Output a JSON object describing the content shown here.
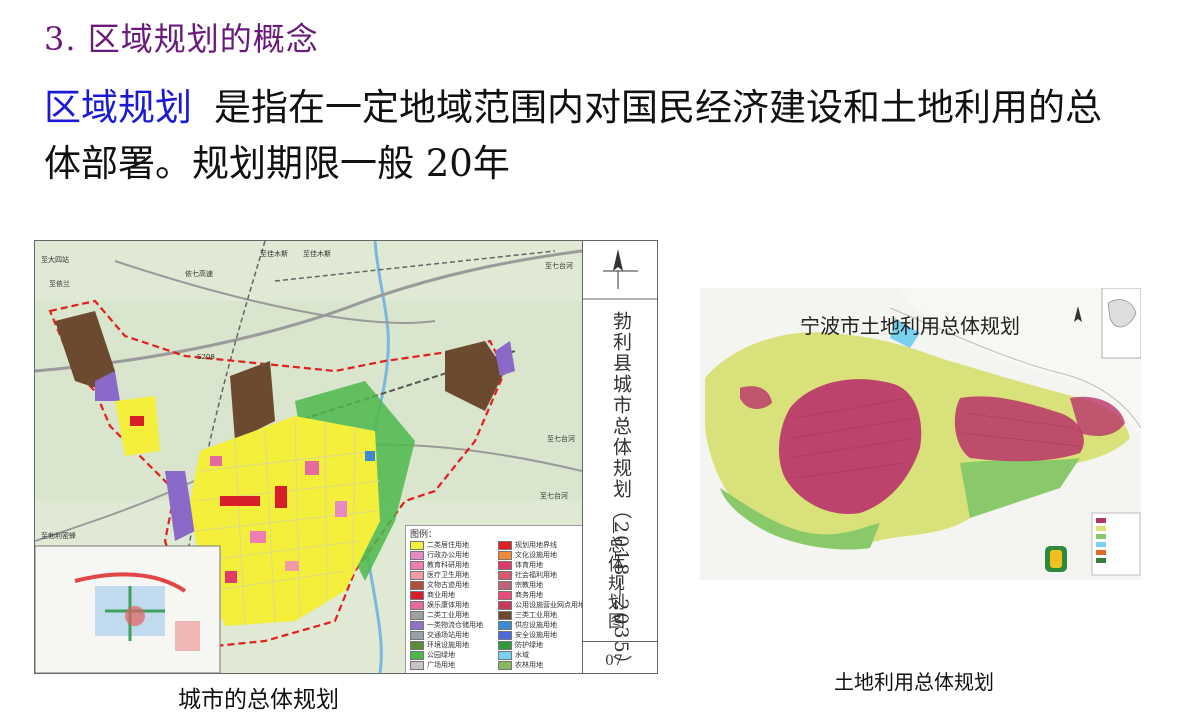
{
  "slide": {
    "title": "3. 区域规划的概念",
    "term": "区域规划",
    "definition": "是指在一定地域范围内对国民经济建设和土地利用的总体部署。规划期限一般 20年"
  },
  "left_figure": {
    "caption": "城市的总体规划",
    "title_block": {
      "vertical_title": "勃利县城市总体规划（2018—2035）",
      "subtitle": "—总体规划图",
      "page": "07"
    },
    "map_labels": [
      "依七高速",
      "S208",
      "至依兰",
      "至大四站",
      "至七台河",
      "至七台河",
      "至七台河",
      "至勃利密蜂",
      "至佳木斯",
      "至佳木斯"
    ],
    "legend": {
      "title": "图例：",
      "items": [
        {
          "label": "二类居住用地",
          "color": "#f3ef3a"
        },
        {
          "label": "规划用地界线",
          "color": "#e02020"
        },
        {
          "label": "行政办公用地",
          "color": "#e58ac4"
        },
        {
          "label": "文化设施用地",
          "color": "#f08a3a"
        },
        {
          "label": "教育科研用地",
          "color": "#f07cb4"
        },
        {
          "label": "体育用地",
          "color": "#e03a6a"
        },
        {
          "label": "医疗卫生用地",
          "color": "#f29aa8"
        },
        {
          "label": "社会福利用地",
          "color": "#d65a6a"
        },
        {
          "label": "文物古迹用地",
          "color": "#b0503a"
        },
        {
          "label": "宗教用地",
          "color": "#c0607a"
        },
        {
          "label": "商业用地",
          "color": "#d81e2a"
        },
        {
          "label": "商务用地",
          "color": "#e84a7a"
        },
        {
          "label": "娱乐康体用地",
          "color": "#e66aa0"
        },
        {
          "label": "公用设施营业网点用地",
          "color": "#c83a5a"
        },
        {
          "label": "二类工业用地",
          "color": "#a0a0a0"
        },
        {
          "label": "三类工业用地",
          "color": "#6b4a30"
        },
        {
          "label": "一类物流仓储用地",
          "color": "#9070c8"
        },
        {
          "label": "供应设施用地",
          "color": "#3a8ad6"
        },
        {
          "label": "交通场站用地",
          "color": "#9aa0aa"
        },
        {
          "label": "安全设施用地",
          "color": "#4a6ad8"
        },
        {
          "label": "环境设施用地",
          "color": "#5a8a3a"
        },
        {
          "label": "防护绿地",
          "color": "#2e9a3a"
        },
        {
          "label": "公园绿地",
          "color": "#4cb84c"
        },
        {
          "label": "水域",
          "color": "#7ad0f0"
        },
        {
          "label": "广场用地",
          "color": "#c4c4c4"
        },
        {
          "label": "农林用地",
          "color": "#88b860"
        }
      ]
    }
  },
  "right_figure": {
    "map_title": "宁波市土地利用总体规划",
    "caption": "土地利用总体规划"
  },
  "colors": {
    "title": "#6a1a7a",
    "term": "#1a1ad6",
    "residential": "#f3ef3a",
    "industrial": "#6b4a30",
    "boundary": "#e02020",
    "urban_landuse": "#b8336a"
  }
}
